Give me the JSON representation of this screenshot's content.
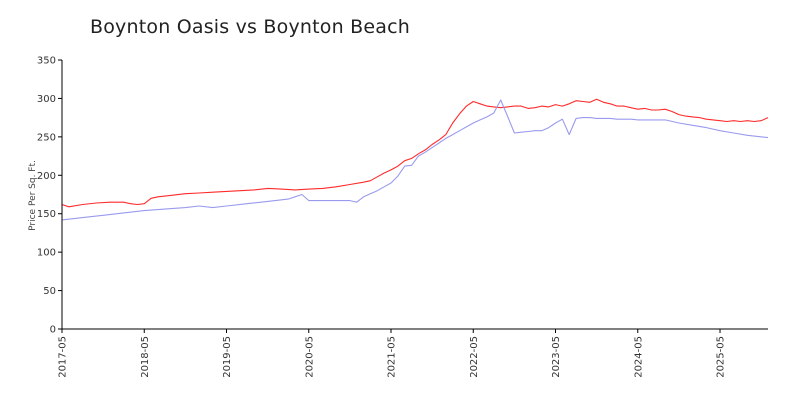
{
  "chart_data": {
    "type": "line",
    "title": "Boynton Oasis vs Boynton Beach",
    "xlabel": "",
    "ylabel": "Price Per Sq. Ft.",
    "ylim": [
      0,
      350
    ],
    "yticks": [
      0,
      50,
      100,
      150,
      200,
      250,
      300,
      350
    ],
    "xticks": [
      "2017-05",
      "2018-05",
      "2019-05",
      "2020-05",
      "2021-05",
      "2022-05",
      "2023-05",
      "2024-05",
      "2025-05"
    ],
    "xlim": [
      "2017-05",
      "2025-12"
    ],
    "grid": false,
    "legend": "none",
    "colors": {
      "boynton_oasis": "#ff2a2a",
      "boynton_beach": "#9a9aee"
    },
    "series": [
      {
        "key": "boynton_oasis",
        "color": "#ff2a2a",
        "points": [
          [
            "2017-05",
            162
          ],
          [
            "2017-06",
            159
          ],
          [
            "2017-08",
            162
          ],
          [
            "2017-10",
            164
          ],
          [
            "2017-12",
            165
          ],
          [
            "2018-02",
            165
          ],
          [
            "2018-03",
            163
          ],
          [
            "2018-04",
            162
          ],
          [
            "2018-05",
            163
          ],
          [
            "2018-06",
            170
          ],
          [
            "2018-07",
            172
          ],
          [
            "2018-09",
            174
          ],
          [
            "2018-11",
            176
          ],
          [
            "2019-01",
            177
          ],
          [
            "2019-03",
            178
          ],
          [
            "2019-05",
            179
          ],
          [
            "2019-07",
            180
          ],
          [
            "2019-09",
            181
          ],
          [
            "2019-11",
            183
          ],
          [
            "2020-01",
            182
          ],
          [
            "2020-03",
            181
          ],
          [
            "2020-05",
            182
          ],
          [
            "2020-07",
            183
          ],
          [
            "2020-09",
            185
          ],
          [
            "2020-11",
            188
          ],
          [
            "2021-01",
            191
          ],
          [
            "2021-02",
            193
          ],
          [
            "2021-03",
            198
          ],
          [
            "2021-04",
            203
          ],
          [
            "2021-05",
            207
          ],
          [
            "2021-06",
            212
          ],
          [
            "2021-07",
            219
          ],
          [
            "2021-08",
            222
          ],
          [
            "2021-09",
            228
          ],
          [
            "2021-10",
            233
          ],
          [
            "2021-11",
            240
          ],
          [
            "2021-12",
            246
          ],
          [
            "2022-01",
            253
          ],
          [
            "2022-02",
            268
          ],
          [
            "2022-03",
            280
          ],
          [
            "2022-04",
            290
          ],
          [
            "2022-05",
            296
          ],
          [
            "2022-06",
            293
          ],
          [
            "2022-07",
            290
          ],
          [
            "2022-08",
            289
          ],
          [
            "2022-09",
            288
          ],
          [
            "2022-10",
            289
          ],
          [
            "2022-11",
            290
          ],
          [
            "2022-12",
            290
          ],
          [
            "2023-01",
            287
          ],
          [
            "2023-02",
            288
          ],
          [
            "2023-03",
            290
          ],
          [
            "2023-04",
            289
          ],
          [
            "2023-05",
            292
          ],
          [
            "2023-06",
            290
          ],
          [
            "2023-07",
            293
          ],
          [
            "2023-08",
            297
          ],
          [
            "2023-09",
            296
          ],
          [
            "2023-10",
            295
          ],
          [
            "2023-11",
            299
          ],
          [
            "2023-12",
            295
          ],
          [
            "2024-01",
            293
          ],
          [
            "2024-02",
            290
          ],
          [
            "2024-03",
            290
          ],
          [
            "2024-04",
            288
          ],
          [
            "2024-05",
            286
          ],
          [
            "2024-06",
            287
          ],
          [
            "2024-07",
            285
          ],
          [
            "2024-08",
            285
          ],
          [
            "2024-09",
            286
          ],
          [
            "2024-10",
            283
          ],
          [
            "2024-11",
            279
          ],
          [
            "2024-12",
            277
          ],
          [
            "2025-01",
            276
          ],
          [
            "2025-02",
            275
          ],
          [
            "2025-03",
            273
          ],
          [
            "2025-04",
            272
          ],
          [
            "2025-05",
            271
          ],
          [
            "2025-06",
            270
          ],
          [
            "2025-07",
            271
          ],
          [
            "2025-08",
            270
          ],
          [
            "2025-09",
            271
          ],
          [
            "2025-10",
            270
          ],
          [
            "2025-11",
            271
          ],
          [
            "2025-12",
            275
          ]
        ]
      },
      {
        "key": "boynton_beach",
        "color": "#9a9aee",
        "points": [
          [
            "2017-05",
            142
          ],
          [
            "2017-08",
            145
          ],
          [
            "2017-11",
            148
          ],
          [
            "2018-02",
            151
          ],
          [
            "2018-05",
            154
          ],
          [
            "2018-08",
            156
          ],
          [
            "2018-11",
            158
          ],
          [
            "2019-01",
            160
          ],
          [
            "2019-03",
            158
          ],
          [
            "2019-05",
            160
          ],
          [
            "2019-08",
            163
          ],
          [
            "2019-11",
            166
          ],
          [
            "2020-02",
            169
          ],
          [
            "2020-03",
            172
          ],
          [
            "2020-04",
            175
          ],
          [
            "2020-05",
            167
          ],
          [
            "2020-07",
            167
          ],
          [
            "2020-09",
            167
          ],
          [
            "2020-11",
            167
          ],
          [
            "2020-12",
            165
          ],
          [
            "2021-01",
            172
          ],
          [
            "2021-02",
            176
          ],
          [
            "2021-03",
            180
          ],
          [
            "2021-04",
            185
          ],
          [
            "2021-05",
            190
          ],
          [
            "2021-06",
            199
          ],
          [
            "2021-07",
            212
          ],
          [
            "2021-08",
            213
          ],
          [
            "2021-09",
            225
          ],
          [
            "2021-10",
            230
          ],
          [
            "2021-11",
            236
          ],
          [
            "2021-12",
            242
          ],
          [
            "2022-01",
            248
          ],
          [
            "2022-02",
            253
          ],
          [
            "2022-03",
            258
          ],
          [
            "2022-04",
            263
          ],
          [
            "2022-05",
            268
          ],
          [
            "2022-06",
            272
          ],
          [
            "2022-07",
            276
          ],
          [
            "2022-08",
            281
          ],
          [
            "2022-09",
            298
          ],
          [
            "2022-10",
            277
          ],
          [
            "2022-11",
            255
          ],
          [
            "2022-12",
            256
          ],
          [
            "2023-01",
            257
          ],
          [
            "2023-02",
            258
          ],
          [
            "2023-03",
            258
          ],
          [
            "2023-04",
            262
          ],
          [
            "2023-05",
            268
          ],
          [
            "2023-06",
            273
          ],
          [
            "2023-07",
            253
          ],
          [
            "2023-08",
            274
          ],
          [
            "2023-09",
            275
          ],
          [
            "2023-10",
            275
          ],
          [
            "2023-11",
            274
          ],
          [
            "2023-12",
            274
          ],
          [
            "2024-01",
            274
          ],
          [
            "2024-02",
            273
          ],
          [
            "2024-03",
            273
          ],
          [
            "2024-04",
            273
          ],
          [
            "2024-05",
            272
          ],
          [
            "2024-07",
            272
          ],
          [
            "2024-09",
            272
          ],
          [
            "2024-11",
            268
          ],
          [
            "2025-01",
            265
          ],
          [
            "2025-03",
            262
          ],
          [
            "2025-05",
            258
          ],
          [
            "2025-07",
            255
          ],
          [
            "2025-09",
            252
          ],
          [
            "2025-12",
            249
          ]
        ]
      }
    ]
  }
}
